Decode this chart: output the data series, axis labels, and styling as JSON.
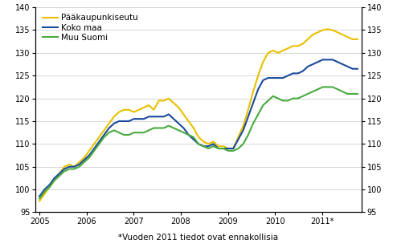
{
  "footnote": "*Vuoden 2011 tiedot ovat ennakollisia",
  "legend": [
    "Pääkaupunkiseutu",
    "Koko maa",
    "Muu Suomi"
  ],
  "colors": [
    "#e8c000",
    "#1a4a9a",
    "#4aaa40"
  ],
  "ylim": [
    95,
    140
  ],
  "yticks": [
    95,
    100,
    105,
    110,
    115,
    120,
    125,
    130,
    135,
    140
  ],
  "x_labels": [
    "2005",
    "2006",
    "2007",
    "2008",
    "2009",
    "2010",
    "2011*"
  ],
  "x_tick_positions": [
    2005.0,
    2006.0,
    2007.0,
    2008.0,
    2009.0,
    2010.0,
    2011.0
  ],
  "xlim": [
    2004.92,
    2011.83
  ],
  "paakaupunkiseutu": [
    97.5,
    99.0,
    100.5,
    102.0,
    103.5,
    105.0,
    105.5,
    105.0,
    106.0,
    107.0,
    108.5,
    110.0,
    111.5,
    113.0,
    114.5,
    116.0,
    117.0,
    117.5,
    117.5,
    117.0,
    117.5,
    118.0,
    118.5,
    117.5,
    119.5,
    119.5,
    120.0,
    119.0,
    118.0,
    116.5,
    115.0,
    113.5,
    111.5,
    110.5,
    110.0,
    110.5,
    109.5,
    109.5,
    109.0,
    109.0,
    111.5,
    114.0,
    117.5,
    121.5,
    125.0,
    128.0,
    130.0,
    130.5,
    130.0,
    130.5,
    131.0,
    131.5,
    131.5,
    132.0,
    133.0,
    134.0,
    134.5,
    135.0,
    135.2,
    135.0,
    134.5,
    134.0,
    133.5,
    133.0,
    133.0
  ],
  "koko_maa": [
    98.5,
    100.0,
    101.0,
    102.5,
    103.5,
    104.5,
    105.0,
    105.0,
    105.5,
    106.5,
    107.5,
    109.0,
    110.5,
    112.0,
    113.5,
    114.5,
    115.0,
    115.0,
    115.0,
    115.5,
    115.5,
    115.5,
    116.0,
    116.0,
    116.0,
    116.0,
    116.5,
    115.5,
    114.5,
    113.5,
    112.0,
    111.0,
    110.0,
    109.5,
    109.5,
    110.0,
    109.0,
    109.0,
    109.0,
    109.0,
    111.0,
    113.0,
    116.0,
    119.0,
    122.0,
    124.0,
    124.5,
    124.5,
    124.5,
    124.5,
    125.0,
    125.5,
    125.5,
    126.0,
    127.0,
    127.5,
    128.0,
    128.5,
    128.5,
    128.5,
    128.0,
    127.5,
    127.0,
    126.5,
    126.5
  ],
  "muu_suomi": [
    98.0,
    99.5,
    100.5,
    102.0,
    103.0,
    104.0,
    104.5,
    104.5,
    105.0,
    106.0,
    107.0,
    108.5,
    110.0,
    111.5,
    112.5,
    113.0,
    112.5,
    112.0,
    112.0,
    112.5,
    112.5,
    112.5,
    113.0,
    113.5,
    113.5,
    113.5,
    114.0,
    113.5,
    113.0,
    112.5,
    112.0,
    111.5,
    110.0,
    109.5,
    109.0,
    109.5,
    109.0,
    109.0,
    108.5,
    108.5,
    109.0,
    110.0,
    112.0,
    114.5,
    116.5,
    118.5,
    119.5,
    120.5,
    120.0,
    119.5,
    119.5,
    120.0,
    120.0,
    120.5,
    121.0,
    121.5,
    122.0,
    122.5,
    122.5,
    122.5,
    122.0,
    121.5,
    121.0,
    121.0,
    121.0
  ],
  "line_width": 1.5,
  "grid_color": "#c8c8c8",
  "tick_fontsize": 7.0,
  "legend_fontsize": 7.5,
  "footnote_fontsize": 7.5
}
